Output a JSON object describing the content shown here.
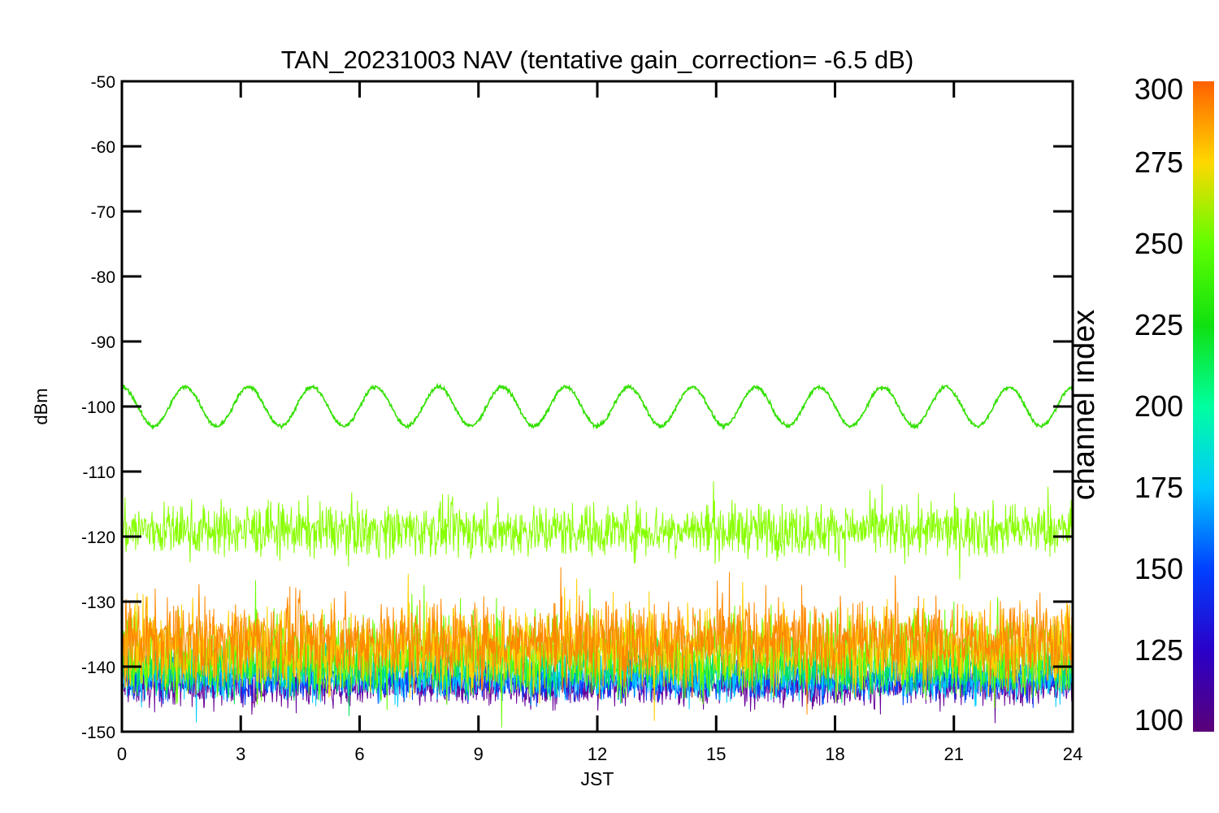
{
  "chart_data": {
    "type": "line",
    "title": "TAN_20231003 NAV (tentative gain_correction= -6.5 dB)",
    "xlabel": "JST",
    "ylabel": "dBm",
    "xlim": [
      0,
      24
    ],
    "ylim": [
      -150,
      -50
    ],
    "xticks": [
      "0",
      "3",
      "6",
      "9",
      "12",
      "15",
      "18",
      "21",
      "24"
    ],
    "yticks": [
      "-50",
      "-60",
      "-70",
      "-80",
      "-90",
      "-100",
      "-110",
      "-120",
      "-130",
      "-140",
      "-150"
    ],
    "colorbar": {
      "label": "channel index",
      "range": [
        100,
        300
      ],
      "ticks": [
        "100",
        "125",
        "150",
        "175",
        "200",
        "225",
        "250",
        "275",
        "300"
      ]
    },
    "series": [
      {
        "channel_index": 237,
        "shape": "sinusoid",
        "mean_dBm": -100,
        "amplitude_dB": 3,
        "period_h": 1.6,
        "noise_dB": 0.3,
        "color": "#33e000"
      },
      {
        "channel_index": 255,
        "shape": "noise",
        "mean_dBm": -119,
        "spread_dB": 4,
        "color": "#88ff00"
      },
      {
        "channel_index": 290,
        "shape": "noise",
        "mean_dBm": -136,
        "spread_dB": 6,
        "color": "#ff8800"
      },
      {
        "channel_index": 275,
        "shape": "noise",
        "mean_dBm": -137,
        "spread_dB": 6,
        "color": "#ffd000"
      },
      {
        "channel_index": 245,
        "shape": "noise",
        "mean_dBm": -138,
        "spread_dB": 6,
        "color": "#66ff00"
      },
      {
        "channel_index": 200,
        "shape": "noise",
        "mean_dBm": -140,
        "spread_dB": 4,
        "color": "#00e060"
      },
      {
        "channel_index": 175,
        "shape": "noise",
        "mean_dBm": -141,
        "spread_dB": 4,
        "color": "#00ccff"
      },
      {
        "channel_index": 140,
        "shape": "noise",
        "mean_dBm": -142,
        "spread_dB": 3,
        "color": "#0044ff"
      },
      {
        "channel_index": 110,
        "shape": "noise",
        "mean_dBm": -143,
        "spread_dB": 3,
        "color": "#660099"
      }
    ],
    "grid": false
  }
}
